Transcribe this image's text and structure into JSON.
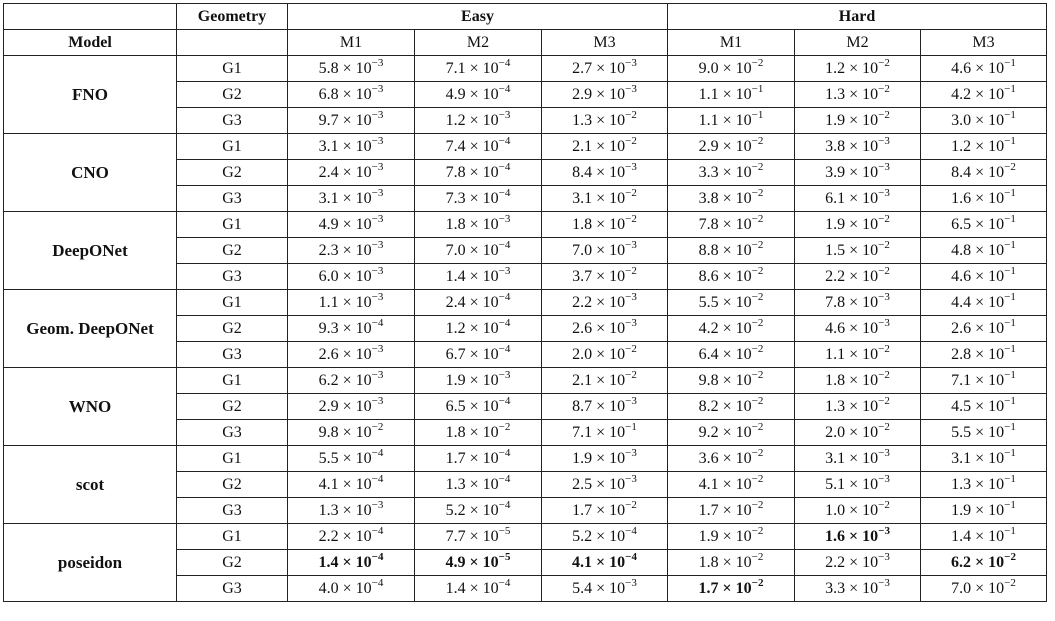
{
  "header": {
    "model": "Model",
    "geometry": "Geometry",
    "easy": "Easy",
    "hard": "Hard",
    "metrics": [
      "M1",
      "M2",
      "M3",
      "M1",
      "M2",
      "M3"
    ]
  },
  "models": [
    {
      "name": "FNO",
      "rows": [
        {
          "geom": "G1",
          "vals": [
            [
              "5.8",
              "-3"
            ],
            [
              "7.1",
              "-4"
            ],
            [
              "2.7",
              "-3"
            ],
            [
              "9.0",
              "-2"
            ],
            [
              "1.2",
              "-2"
            ],
            [
              "4.6",
              "-1"
            ]
          ],
          "bold": []
        },
        {
          "geom": "G2",
          "vals": [
            [
              "6.8",
              "-3"
            ],
            [
              "4.9",
              "-4"
            ],
            [
              "2.9",
              "-3"
            ],
            [
              "1.1",
              "-1"
            ],
            [
              "1.3",
              "-2"
            ],
            [
              "4.2",
              "-1"
            ]
          ],
          "bold": []
        },
        {
          "geom": "G3",
          "vals": [
            [
              "9.7",
              "-3"
            ],
            [
              "1.2",
              "-3"
            ],
            [
              "1.3",
              "-2"
            ],
            [
              "1.1",
              "-1"
            ],
            [
              "1.9",
              "-2"
            ],
            [
              "3.0",
              "-1"
            ]
          ],
          "bold": []
        }
      ]
    },
    {
      "name": "CNO",
      "rows": [
        {
          "geom": "G1",
          "vals": [
            [
              "3.1",
              "-3"
            ],
            [
              "7.4",
              "-4"
            ],
            [
              "2.1",
              "-2"
            ],
            [
              "2.9",
              "-2"
            ],
            [
              "3.8",
              "-3"
            ],
            [
              "1.2",
              "-1"
            ]
          ],
          "bold": []
        },
        {
          "geom": "G2",
          "vals": [
            [
              "2.4",
              "-3"
            ],
            [
              "7.8",
              "-4"
            ],
            [
              "8.4",
              "-3"
            ],
            [
              "3.3",
              "-2"
            ],
            [
              "3.9",
              "-3"
            ],
            [
              "8.4",
              "-2"
            ]
          ],
          "bold": []
        },
        {
          "geom": "G3",
          "vals": [
            [
              "3.1",
              "-3"
            ],
            [
              "7.3",
              "-4"
            ],
            [
              "3.1",
              "-2"
            ],
            [
              "3.8",
              "-2"
            ],
            [
              "6.1",
              "-3"
            ],
            [
              "1.6",
              "-1"
            ]
          ],
          "bold": []
        }
      ]
    },
    {
      "name": "DeepONet",
      "rows": [
        {
          "geom": "G1",
          "vals": [
            [
              "4.9",
              "-3"
            ],
            [
              "1.8",
              "-3"
            ],
            [
              "1.8",
              "-2"
            ],
            [
              "7.8",
              "-2"
            ],
            [
              "1.9",
              "-2"
            ],
            [
              "6.5",
              "-1"
            ]
          ],
          "bold": []
        },
        {
          "geom": "G2",
          "vals": [
            [
              "2.3",
              "-3"
            ],
            [
              "7.0",
              "-4"
            ],
            [
              "7.0",
              "-3"
            ],
            [
              "8.8",
              "-2"
            ],
            [
              "1.5",
              "-2"
            ],
            [
              "4.8",
              "-1"
            ]
          ],
          "bold": []
        },
        {
          "geom": "G3",
          "vals": [
            [
              "6.0",
              "-3"
            ],
            [
              "1.4",
              "-3"
            ],
            [
              "3.7",
              "-2"
            ],
            [
              "8.6",
              "-2"
            ],
            [
              "2.2",
              "-2"
            ],
            [
              "4.6",
              "-1"
            ]
          ],
          "bold": []
        }
      ]
    },
    {
      "name": "Geom. DeepONet",
      "rows": [
        {
          "geom": "G1",
          "vals": [
            [
              "1.1",
              "-3"
            ],
            [
              "2.4",
              "-4"
            ],
            [
              "2.2",
              "-3"
            ],
            [
              "5.5",
              "-2"
            ],
            [
              "7.8",
              "-3"
            ],
            [
              "4.4",
              "-1"
            ]
          ],
          "bold": []
        },
        {
          "geom": "G2",
          "vals": [
            [
              "9.3",
              "-4"
            ],
            [
              "1.2",
              "-4"
            ],
            [
              "2.6",
              "-3"
            ],
            [
              "4.2",
              "-2"
            ],
            [
              "4.6",
              "-3"
            ],
            [
              "2.6",
              "-1"
            ]
          ],
          "bold": []
        },
        {
          "geom": "G3",
          "vals": [
            [
              "2.6",
              "-3"
            ],
            [
              "6.7",
              "-4"
            ],
            [
              "2.0",
              "-2"
            ],
            [
              "6.4",
              "-2"
            ],
            [
              "1.1",
              "-2"
            ],
            [
              "2.8",
              "-1"
            ]
          ],
          "bold": []
        }
      ]
    },
    {
      "name": "WNO",
      "rows": [
        {
          "geom": "G1",
          "vals": [
            [
              "6.2",
              "-3"
            ],
            [
              "1.9",
              "-3"
            ],
            [
              "2.1",
              "-2"
            ],
            [
              "9.8",
              "-2"
            ],
            [
              "1.8",
              "-2"
            ],
            [
              "7.1",
              "-1"
            ]
          ],
          "bold": []
        },
        {
          "geom": "G2",
          "vals": [
            [
              "2.9",
              "-3"
            ],
            [
              "6.5",
              "-4"
            ],
            [
              "8.7",
              "-3"
            ],
            [
              "8.2",
              "-2"
            ],
            [
              "1.3",
              "-2"
            ],
            [
              "4.5",
              "-1"
            ]
          ],
          "bold": []
        },
        {
          "geom": "G3",
          "vals": [
            [
              "9.8",
              "-2"
            ],
            [
              "1.8",
              "-2"
            ],
            [
              "7.1",
              "-1"
            ],
            [
              "9.2",
              "-2"
            ],
            [
              "2.0",
              "-2"
            ],
            [
              "5.5",
              "-1"
            ]
          ],
          "bold": []
        }
      ]
    },
    {
      "name": "scot",
      "rows": [
        {
          "geom": "G1",
          "vals": [
            [
              "5.5",
              "-4"
            ],
            [
              "1.7",
              "-4"
            ],
            [
              "1.9",
              "-3"
            ],
            [
              "3.6",
              "-2"
            ],
            [
              "3.1",
              "-3"
            ],
            [
              "3.1",
              "-1"
            ]
          ],
          "bold": []
        },
        {
          "geom": "G2",
          "vals": [
            [
              "4.1",
              "-4"
            ],
            [
              "1.3",
              "-4"
            ],
            [
              "2.5",
              "-3"
            ],
            [
              "4.1",
              "-2"
            ],
            [
              "5.1",
              "-3"
            ],
            [
              "1.3",
              "-1"
            ]
          ],
          "bold": []
        },
        {
          "geom": "G3",
          "vals": [
            [
              "1.3",
              "-3"
            ],
            [
              "5.2",
              "-4"
            ],
            [
              "1.7",
              "-2"
            ],
            [
              "1.7",
              "-2"
            ],
            [
              "1.0",
              "-2"
            ],
            [
              "1.9",
              "-1"
            ]
          ],
          "bold": []
        }
      ]
    },
    {
      "name": "poseidon",
      "rows": [
        {
          "geom": "G1",
          "vals": [
            [
              "2.2",
              "-4"
            ],
            [
              "7.7",
              "-5"
            ],
            [
              "5.2",
              "-4"
            ],
            [
              "1.9",
              "-2"
            ],
            [
              "1.6",
              "-3"
            ],
            [
              "1.4",
              "-1"
            ]
          ],
          "bold": [
            4
          ]
        },
        {
          "geom": "G2",
          "vals": [
            [
              "1.4",
              "-4"
            ],
            [
              "4.9",
              "-5"
            ],
            [
              "4.1",
              "-4"
            ],
            [
              "1.8",
              "-2"
            ],
            [
              "2.2",
              "-3"
            ],
            [
              "6.2",
              "-2"
            ]
          ],
          "bold": [
            0,
            1,
            2,
            5
          ]
        },
        {
          "geom": "G3",
          "vals": [
            [
              "4.0",
              "-4"
            ],
            [
              "1.4",
              "-4"
            ],
            [
              "5.4",
              "-3"
            ],
            [
              "1.7",
              "-2"
            ],
            [
              "3.3",
              "-3"
            ],
            [
              "7.0",
              "-2"
            ]
          ],
          "bold": [
            3
          ]
        }
      ]
    }
  ]
}
